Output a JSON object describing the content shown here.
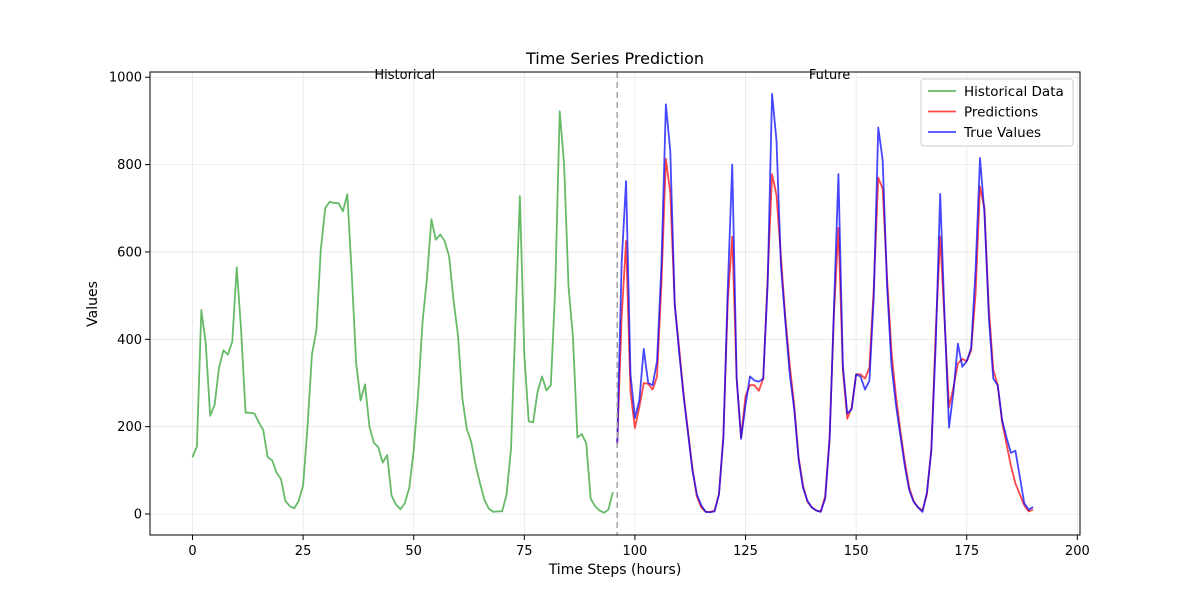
{
  "chart_data": {
    "type": "line",
    "title": "Time Series Prediction",
    "xlabel": "Time Steps (hours)",
    "ylabel": "Values",
    "xlim": [
      -9.6,
      200.6
    ],
    "ylim": [
      -48,
      1012
    ],
    "xticks": [
      0,
      25,
      50,
      75,
      100,
      125,
      150,
      175,
      200
    ],
    "yticks": [
      0,
      200,
      400,
      600,
      800,
      1000
    ],
    "grid": true,
    "legend_position": "top-right",
    "split_x": 96,
    "region_labels": [
      {
        "text": "Historical",
        "x": 48,
        "y": 1000
      },
      {
        "text": "Future",
        "x": 144,
        "y": 1000
      }
    ],
    "series": [
      {
        "name": "Historical Data",
        "color": "#2ca02c",
        "x_start": 0,
        "values": [
          130,
          155,
          467,
          390,
          225,
          250,
          335,
          375,
          365,
          395,
          565,
          420,
          232,
          232,
          230,
          210,
          192,
          130,
          123,
          95,
          80,
          30,
          18,
          13,
          30,
          65,
          200,
          365,
          420,
          605,
          700,
          715,
          712,
          712,
          693,
          732,
          550,
          345,
          260,
          297,
          200,
          163,
          153,
          118,
          135,
          42,
          22,
          11,
          25,
          60,
          145,
          275,
          440,
          540,
          675,
          628,
          640,
          625,
          590,
          490,
          410,
          265,
          195,
          165,
          112,
          70,
          32,
          12,
          5,
          6,
          6,
          45,
          150,
          440,
          728,
          365,
          212,
          210,
          280,
          315,
          283,
          295,
          520,
          922,
          800,
          520,
          405,
          175,
          183,
          162,
          35,
          18,
          8,
          3,
          10,
          50
        ]
      },
      {
        "name": "Predictions",
        "color": "#ff0000",
        "x_start": 96,
        "values": [
          160,
          450,
          625,
          280,
          197,
          245,
          300,
          298,
          285,
          315,
          530,
          813,
          735,
          480,
          380,
          275,
          190,
          105,
          40,
          15,
          5,
          5,
          8,
          45,
          180,
          490,
          635,
          310,
          175,
          270,
          295,
          295,
          282,
          310,
          540,
          778,
          730,
          590,
          450,
          340,
          250,
          130,
          65,
          28,
          15,
          8,
          6,
          40,
          175,
          460,
          655,
          330,
          218,
          245,
          320,
          320,
          310,
          335,
          520,
          770,
          745,
          540,
          370,
          270,
          190,
          120,
          60,
          30,
          15,
          8,
          45,
          150,
          420,
          635,
          440,
          245,
          290,
          345,
          355,
          350,
          375,
          505,
          750,
          700,
          470,
          330,
          295,
          210,
          160,
          110,
          70,
          45,
          20,
          6,
          10
        ]
      },
      {
        "name": "True Values",
        "color": "#0000ff",
        "x_start": 96,
        "values": [
          160,
          575,
          762,
          320,
          220,
          260,
          378,
          300,
          295,
          350,
          570,
          938,
          830,
          480,
          370,
          270,
          185,
          100,
          45,
          20,
          5,
          4,
          6,
          45,
          175,
          520,
          800,
          310,
          172,
          250,
          315,
          306,
          303,
          310,
          525,
          962,
          855,
          570,
          440,
          320,
          240,
          125,
          60,
          30,
          15,
          8,
          5,
          35,
          170,
          475,
          778,
          340,
          230,
          240,
          320,
          315,
          285,
          305,
          500,
          885,
          810,
          520,
          340,
          250,
          180,
          110,
          55,
          28,
          15,
          5,
          50,
          145,
          390,
          733,
          450,
          198,
          280,
          390,
          337,
          350,
          380,
          560,
          815,
          690,
          450,
          310,
          295,
          215,
          175,
          140,
          145,
          85,
          25,
          10,
          16
        ]
      }
    ]
  }
}
